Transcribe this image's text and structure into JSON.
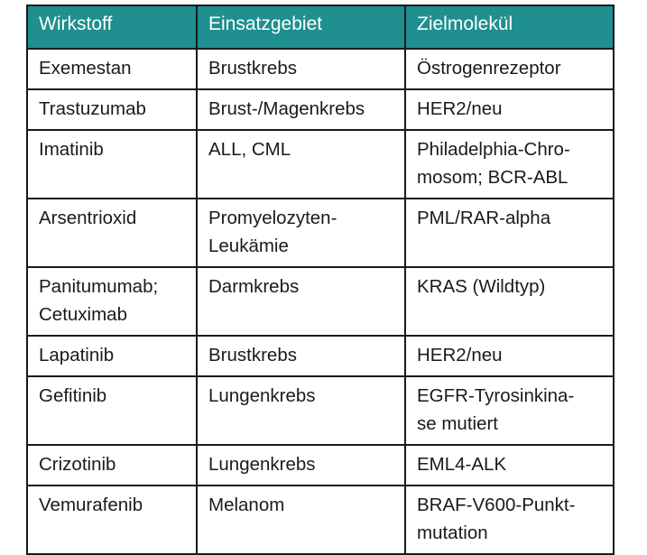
{
  "headers": [
    "Wirkstoff",
    "Einsatzgebiet",
    "Zielmolekül"
  ],
  "rows": [
    [
      "Exemestan",
      "Brustkrebs",
      "Östrogenrezeptor"
    ],
    [
      "Trastuzumab",
      "Brust-/Magenkrebs",
      "HER2/neu"
    ],
    [
      "Imatinib",
      "ALL, CML",
      "Philadelphia-Chro-\nmosom; BCR-ABL"
    ],
    [
      "Arsentrioxid",
      "Promyelozyten-\nLeukämie",
      "PML/RAR-alpha"
    ],
    [
      "Panitumumab;\nCetuximab",
      "Darmkrebs",
      "KRAS (Wildtyp)"
    ],
    [
      "Lapatinib",
      "Brustkrebs",
      "HER2/neu"
    ],
    [
      "Gefitinib",
      "Lungenkrebs",
      "EGFR-Tyrosinkina-\nse mutiert"
    ],
    [
      "Crizotinib",
      "Lungenkrebs",
      "EML4-ALK"
    ],
    [
      "Vemurafenib",
      "Melanom",
      "BRAF-V600-Punkt-\nmutation"
    ]
  ],
  "colors": {
    "header_bg": "#1f8f8f",
    "header_text": "#ffffff",
    "border": "#1a1a1a"
  }
}
